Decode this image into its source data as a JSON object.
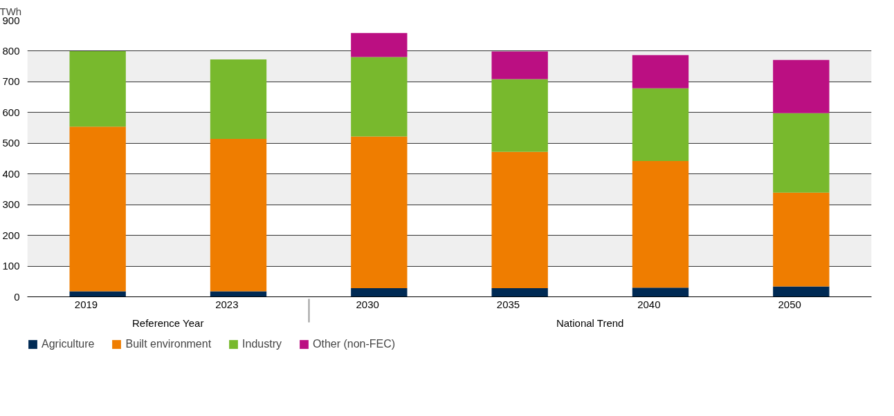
{
  "chart_data": {
    "type": "bar",
    "stacked": true,
    "ylabel": "TWh",
    "categories": [
      "2019",
      "2023",
      "2030",
      "2035",
      "2040",
      "2050"
    ],
    "annotations": [
      "Reference Year",
      "National Trend"
    ],
    "series": [
      {
        "name": "Agriculture",
        "color": "#002a54",
        "values": [
          18,
          18,
          28,
          28,
          30,
          34
        ]
      },
      {
        "name": "Built environment",
        "color": "#ef7d00",
        "values": [
          536,
          496,
          494,
          444,
          412,
          305
        ]
      },
      {
        "name": "Industry",
        "color": "#78b92d",
        "values": [
          246,
          259,
          259,
          237,
          237,
          259
        ]
      },
      {
        "name": "Other (non-FEC)",
        "color": "#bb0f82",
        "values": [
          null,
          null,
          78,
          90,
          108,
          173
        ]
      }
    ],
    "ylim": [
      0,
      900
    ],
    "yticks": [
      0,
      100,
      200,
      300,
      400,
      500,
      600,
      700,
      800,
      900
    ],
    "grid": "y",
    "legend": "bottom"
  }
}
